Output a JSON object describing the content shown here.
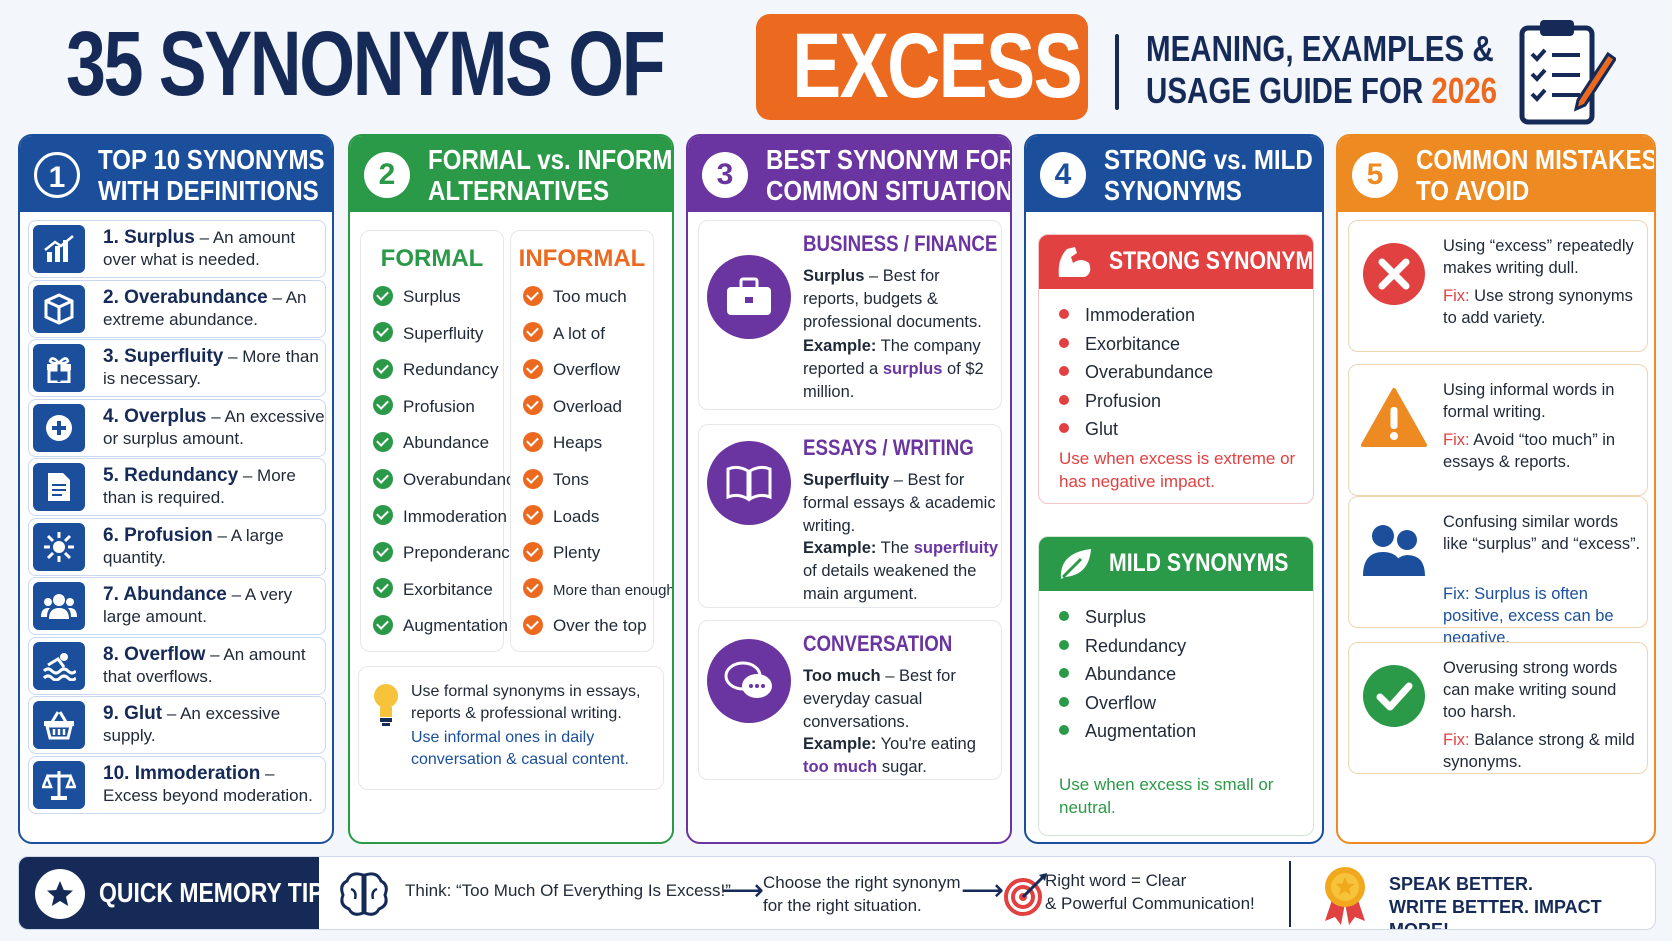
{
  "header": {
    "title_main": "35 SYNONYMS OF",
    "title_highlight": "EXCESS",
    "subtitle_line1": "MEANING, EXAMPLES &",
    "subtitle_line2": "USAGE GUIDE FOR",
    "subtitle_year": "2026"
  },
  "col1": {
    "num": "1",
    "title_l1": "TOP 10 SYNONYMS",
    "title_l2": "WITH DEFINITIONS",
    "items": [
      {
        "word": "1. Surplus",
        "def": " – An amount over what is needed.",
        "icon": "chart-icon"
      },
      {
        "word": "2. Overabundance",
        "def": " – An extreme abundance.",
        "icon": "box-icon"
      },
      {
        "word": "3. Superfluity",
        "def": " – More than is necessary.",
        "icon": "gift-icon"
      },
      {
        "word": "4. Overplus",
        "def": " – An excessive or surplus amount.",
        "icon": "plus-icon"
      },
      {
        "word": "5. Redundancy",
        "def": " – More than is required.",
        "icon": "document-icon"
      },
      {
        "word": "6. Profusion",
        "def": " – A large quantity.",
        "icon": "burst-icon"
      },
      {
        "word": "7. Abundance",
        "def": " – A very large amount.",
        "icon": "people-icon"
      },
      {
        "word": "8. Overflow",
        "def": " – An amount that overflows.",
        "icon": "wave-icon"
      },
      {
        "word": "9. Glut",
        "def": " – An excessive supply.",
        "icon": "basket-icon"
      },
      {
        "word": "10. Immoderation",
        "def": " – Excess beyond moderation.",
        "icon": "scale-icon"
      }
    ]
  },
  "col2": {
    "num": "2",
    "title_l1": "FORMAL vs. INFORMAL",
    "title_l2": "ALTERNATIVES",
    "formal_heading": "FORMAL",
    "informal_heading": "INFORMAL",
    "formal": [
      "Surplus",
      "Superfluity",
      "Redundancy",
      "Profusion",
      "Abundance",
      "Overabundance",
      "Immoderation",
      "Preponderance",
      "Exorbitance",
      "Augmentation"
    ],
    "informal": [
      "Too much",
      "A lot of",
      "Overflow",
      "Overload",
      "Heaps",
      "Tons",
      "Loads",
      "Plenty",
      "More than enough,",
      "Over the top"
    ],
    "tip_formal": "Use formal synonyms in essays, reports & professional writing.",
    "tip_informal": "Use informal ones in daily conversation & casual content."
  },
  "col3": {
    "num": "3",
    "title_l1": "BEST SYNONYM FOR",
    "title_l2": "COMMON SITUATIONS",
    "business": {
      "heading": "BUSINESS / FINANCE",
      "word": "Surplus",
      "desc": " – Best for reports, budgets & professional documents.",
      "ex_label": "Example:",
      "ex_pre": " The company reported a ",
      "ex_word": "surplus",
      "ex_post": " of $2 million."
    },
    "essays": {
      "heading": "ESSAYS / WRITING",
      "word": "Superfluity",
      "desc": " – Best for formal essays & academic writing.",
      "ex_label": "Example:",
      "ex_pre": " The ",
      "ex_word": "superfluity",
      "ex_post": " of details weakened the main argument."
    },
    "conversation": {
      "heading": "CONVERSATION",
      "word": "Too much",
      "desc": " – Best for everyday casual conversations.",
      "ex_label": "Example:",
      "ex_pre": " You're eating ",
      "ex_word": "too much",
      "ex_post": " sugar."
    }
  },
  "col4": {
    "num": "4",
    "title_l1": "STRONG vs. MILD",
    "title_l2": "SYNONYMS",
    "strong_heading": "STRONG SYNONYMS",
    "strong": [
      "Immoderation",
      "Exorbitance",
      "Overabundance",
      "Profusion",
      "Glut"
    ],
    "strong_note": "Use when excess is extreme or has negative impact.",
    "mild_heading": "MILD SYNONYMS",
    "mild": [
      "Surplus",
      "Redundancy",
      "Abundance",
      "Overflow",
      "Augmentation"
    ],
    "mild_note": "Use when excess is small or neutral."
  },
  "col5": {
    "num": "5",
    "title_l1": "COMMON MISTAKES",
    "title_l2": "TO AVOID",
    "items": [
      {
        "text": "Using “excess” repeatedly makes writing dull.",
        "fix_label": "Fix:",
        "fix": " Use strong synonyms to add variety.",
        "icon": "x-circle-icon"
      },
      {
        "text": "Using informal words in formal writing.",
        "fix_label": "Fix:",
        "fix": " Avoid “too much” in essays & reports.",
        "icon": "warning-icon"
      },
      {
        "text": "Confusing similar words like “surplus” and “excess”.",
        "fix_label": "Fix:",
        "fix": " Surplus is often positive, excess can be negative.",
        "icon": "users-icon"
      },
      {
        "text": "Overusing strong words can make writing sound too harsh.",
        "fix_label": "Fix:",
        "fix": " Balance strong & mild synonyms.",
        "icon": "check-circle-icon"
      }
    ]
  },
  "footer": {
    "title": "QUICK MEMORY TIP",
    "think": "Think: “Too Much Of Everything Is Excess!”",
    "choose_l1": "Choose the right synonym",
    "choose_l2": "for the right situation.",
    "right_l1": "Right word = Clear",
    "right_l2": "& Powerful Communication!",
    "end_l1": "SPEAK BETTER.",
    "end_l2": "WRITE BETTER. IMPACT MORE!"
  },
  "colors": {
    "navy": "#162a57",
    "blue": "#1b4f9c",
    "green": "#2b9a48",
    "purple": "#6a35a0",
    "orange": "#ee8a22",
    "red": "#e14141"
  }
}
